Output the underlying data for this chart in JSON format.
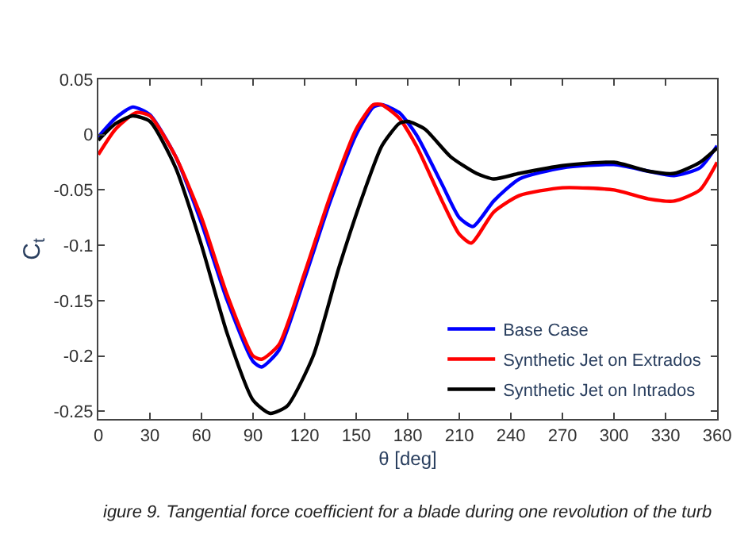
{
  "chart_data": {
    "type": "line",
    "xlabel": "θ [deg]",
    "ylabel": "C$_{t}$",
    "xlim": [
      0,
      360
    ],
    "ylim": [
      -0.257,
      0.05
    ],
    "xticks": [
      0,
      30,
      60,
      90,
      120,
      150,
      180,
      210,
      240,
      270,
      300,
      330,
      360
    ],
    "yticks": [
      -0.25,
      -0.2,
      -0.15,
      -0.1,
      -0.05,
      0,
      0.05
    ],
    "legend": "bottom right",
    "marker": "none",
    "line_style": "solid",
    "annotations": [
      "igure 9. Tangential force coefficient for a blade during one revolution of the turb"
    ],
    "series": [
      {
        "name": "Base Case",
        "color": "#0000ff",
        "x": [
          0,
          10,
          20,
          30,
          45,
          60,
          75,
          90,
          95,
          105,
          120,
          135,
          150,
          160,
          165,
          175,
          185,
          200,
          210,
          218,
          230,
          245,
          270,
          300,
          320,
          335,
          350,
          360
        ],
        "values": [
          -0.002,
          0.015,
          0.025,
          0.018,
          -0.02,
          -0.08,
          -0.15,
          -0.205,
          -0.21,
          -0.195,
          -0.13,
          -0.06,
          0.0,
          0.025,
          0.027,
          0.02,
          0.0,
          -0.045,
          -0.075,
          -0.083,
          -0.06,
          -0.04,
          -0.03,
          -0.027,
          -0.033,
          -0.037,
          -0.03,
          -0.01
        ]
      },
      {
        "name": "Synthetic Jet on Extrados",
        "color": "#ff0000",
        "x": [
          0,
          10,
          22,
          30,
          45,
          60,
          75,
          90,
          95,
          105,
          120,
          135,
          150,
          160,
          165,
          175,
          185,
          200,
          210,
          217,
          230,
          245,
          270,
          300,
          320,
          335,
          350,
          360
        ],
        "values": [
          -0.018,
          0.005,
          0.02,
          0.017,
          -0.02,
          -0.075,
          -0.145,
          -0.2,
          -0.203,
          -0.19,
          -0.125,
          -0.055,
          0.005,
          0.027,
          0.027,
          0.015,
          -0.01,
          -0.06,
          -0.09,
          -0.098,
          -0.07,
          -0.055,
          -0.048,
          -0.05,
          -0.058,
          -0.06,
          -0.05,
          -0.025
        ]
      },
      {
        "name": "Synthetic Jet on Intrados",
        "color": "#000000",
        "x": [
          0,
          10,
          20,
          30,
          45,
          60,
          75,
          90,
          100,
          110,
          125,
          140,
          155,
          165,
          175,
          180,
          190,
          205,
          220,
          230,
          245,
          270,
          300,
          320,
          335,
          350,
          360
        ],
        "values": [
          -0.005,
          0.01,
          0.017,
          0.012,
          -0.03,
          -0.1,
          -0.18,
          -0.24,
          -0.252,
          -0.245,
          -0.2,
          -0.12,
          -0.05,
          -0.01,
          0.01,
          0.012,
          0.005,
          -0.02,
          -0.035,
          -0.04,
          -0.035,
          -0.028,
          -0.025,
          -0.033,
          -0.035,
          -0.025,
          -0.012
        ]
      }
    ]
  }
}
